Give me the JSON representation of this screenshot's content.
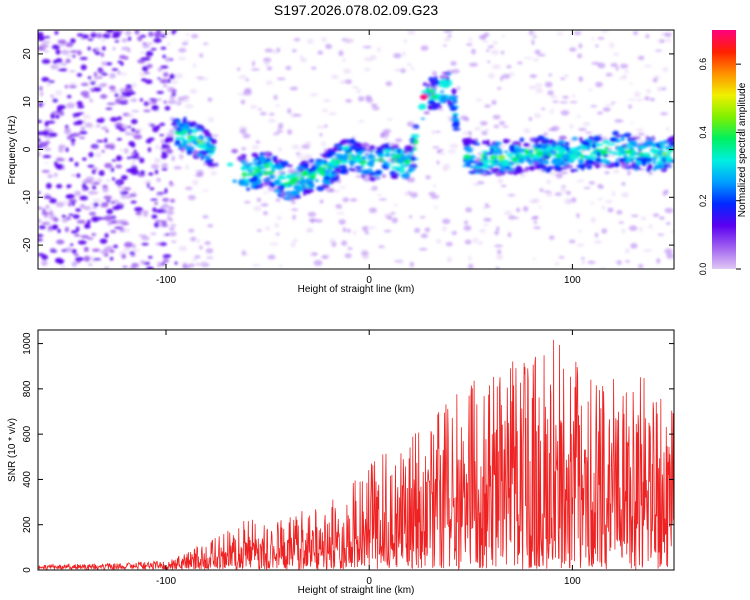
{
  "title": "S197.2026.078.02.09.G23",
  "chart_data": [
    {
      "type": "heatmap",
      "name": "spectrogram",
      "xlabel": "Height of straight line (km)",
      "ylabel": "Frequency (Hz)",
      "xlim": [
        -163,
        150
      ],
      "ylim": [
        -25,
        25
      ],
      "xticks": [
        -100,
        0,
        100
      ],
      "yticks": [
        -20,
        -10,
        0,
        10,
        20
      ],
      "colorbar": {
        "label": "Normalized spectral amplitude",
        "range": [
          0,
          0.7
        ],
        "ticks": [
          "0.0",
          "0.2",
          "0.4",
          "0.6"
        ],
        "colormap": [
          "#e0c8f5",
          "#a060f0",
          "#5a00f0",
          "#0028ff",
          "#00a0ff",
          "#00f0e0",
          "#00f060",
          "#80f000",
          "#f0f000",
          "#ff9000",
          "#ff2000",
          "#ff0080"
        ]
      },
      "ridge": [
        {
          "x": -90,
          "y": 3
        },
        {
          "x": -80,
          "y": 1
        },
        {
          "x": -70,
          "y": -3
        },
        {
          "x": -60,
          "y": -5
        },
        {
          "x": -50,
          "y": -4
        },
        {
          "x": -40,
          "y": -7
        },
        {
          "x": -30,
          "y": -6
        },
        {
          "x": -20,
          "y": -4
        },
        {
          "x": -10,
          "y": -1
        },
        {
          "x": 0,
          "y": -3
        },
        {
          "x": 10,
          "y": -2
        },
        {
          "x": 20,
          "y": -3
        },
        {
          "x": 28,
          "y": 11
        },
        {
          "x": 40,
          "y": 13
        },
        {
          "x": 46,
          "y": -1
        },
        {
          "x": 60,
          "y": -2
        },
        {
          "x": 80,
          "y": -1
        },
        {
          "x": 100,
          "y": -1
        },
        {
          "x": 120,
          "y": 0
        },
        {
          "x": 140,
          "y": -1
        }
      ],
      "peak": {
        "x": 27,
        "y": 11,
        "value": 0.7
      },
      "gaps": [
        [
          -77,
          -63
        ],
        [
          23,
          26
        ],
        [
          43,
          46
        ]
      ]
    },
    {
      "type": "line",
      "name": "snr",
      "xlabel": "Height of straight line (km)",
      "ylabel": "SNR (10 * v/v)",
      "xlim": [
        -163,
        150
      ],
      "ylim": [
        0,
        1060
      ],
      "xticks": [
        -100,
        0,
        100
      ],
      "yticks": [
        0,
        200,
        400,
        600,
        800,
        1000
      ],
      "color": "#ee2222",
      "envelope": [
        {
          "x": -163,
          "y": 20
        },
        {
          "x": -130,
          "y": 30
        },
        {
          "x": -100,
          "y": 40
        },
        {
          "x": -90,
          "y": 80
        },
        {
          "x": -75,
          "y": 150
        },
        {
          "x": -60,
          "y": 230
        },
        {
          "x": -45,
          "y": 220
        },
        {
          "x": -30,
          "y": 280
        },
        {
          "x": -15,
          "y": 320
        },
        {
          "x": 0,
          "y": 500
        },
        {
          "x": 10,
          "y": 520
        },
        {
          "x": 20,
          "y": 580
        },
        {
          "x": 40,
          "y": 780
        },
        {
          "x": 60,
          "y": 900
        },
        {
          "x": 80,
          "y": 950
        },
        {
          "x": 90,
          "y": 1060
        },
        {
          "x": 100,
          "y": 950
        },
        {
          "x": 120,
          "y": 900
        },
        {
          "x": 135,
          "y": 850
        },
        {
          "x": 150,
          "y": 700
        }
      ]
    }
  ]
}
